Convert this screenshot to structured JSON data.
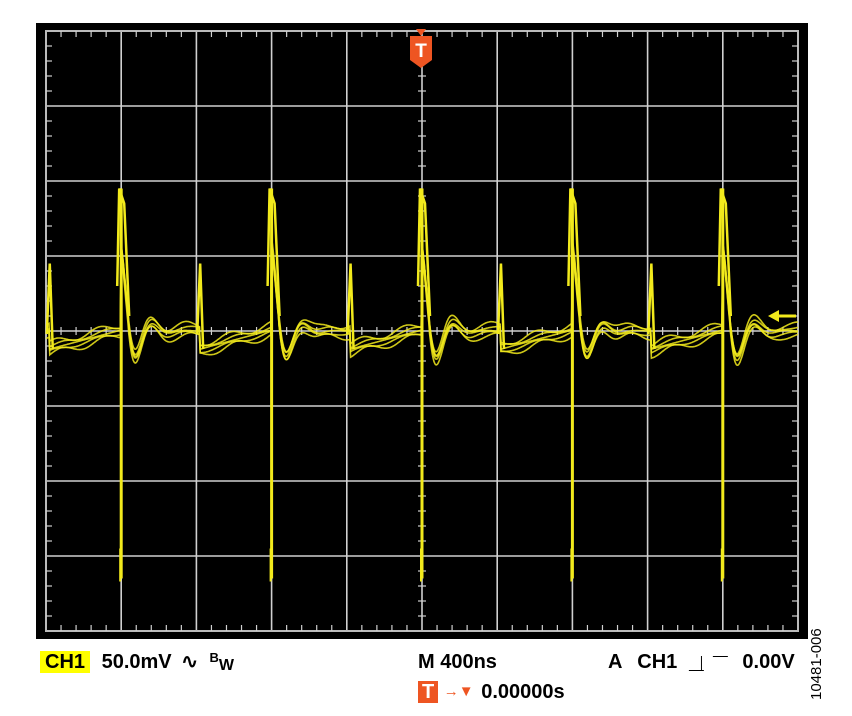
{
  "chart_data": {
    "type": "line",
    "title": "",
    "xlabel": "",
    "ylabel": "",
    "grid": true,
    "divisions": {
      "x": 10,
      "y": 8
    },
    "x_unit": "ns",
    "y_unit": "mV",
    "xlim": [
      -2000,
      2000
    ],
    "ylim": [
      -200,
      200
    ],
    "series": [
      {
        "color": "#f2ea1c",
        "pulse_times": [
          -1600,
          -800,
          0,
          800,
          1600
        ],
        "mid_spike_times": [
          -1980,
          -1180,
          -380,
          420,
          1220
        ],
        "baseline_mV": 0,
        "spike_peak_mV": 95,
        "spike_trough_mV": -165,
        "mid_spike_peak_mV": 45
      }
    ]
  },
  "colors": {
    "background": "#000000",
    "frame": "#000000",
    "grid": "#d0d0d0",
    "trace": "#f2ea1c",
    "ch1_badge": "#ffff00",
    "trigger": "#ee5522"
  },
  "icons": {
    "trigger_marker": "T",
    "level_marker": "left-arrow-icon"
  },
  "readout": {
    "channel": "CH1",
    "volts_per_div": "50.0mV",
    "ac_coupling_symbol": "∿",
    "bw_limit_b": "B",
    "bw_limit_w": "W",
    "timebase": "M 400ns",
    "trigger_mode": "A",
    "trigger_channel": "CH1",
    "trigger_edge_symbol": "⎽⎸⎺",
    "trigger_level": "0.00V",
    "trigger_label": "T",
    "trigger_offset_arrow": "→▼",
    "trigger_position": "0.00000s"
  },
  "figure_id": "10481-006"
}
